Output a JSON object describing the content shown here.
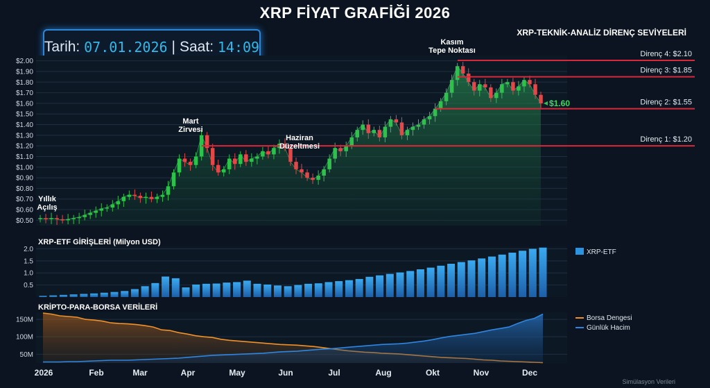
{
  "title": "XRP FİYAT GRAFİĞİ 2026",
  "datebox": {
    "date_label": "Tarih:",
    "date_value": "07.01.2026",
    "separator": "|",
    "time_label": "Saat:",
    "time_value": "14:09"
  },
  "resistance_title": "XRP-TEKNİK-ANALİZ DİRENÇ SEVİYELERİ",
  "source_note": "Simülasyon Verileri",
  "colors": {
    "up": "#2fc24a",
    "down": "#e24848",
    "resistance": "#d8283a",
    "etf": "#2b93e0",
    "balance": "#f0922a",
    "volume": "#2f86e0",
    "area": "#1f7a4a"
  },
  "chart_data": [
    {
      "type": "candlestick",
      "title": "XRP Fiyat",
      "ylim": [
        0.45,
        2.05
      ],
      "y_ticks": [
        "$0.50",
        "$0.60",
        "$0.70",
        "$0.80",
        "$0.90",
        "$1.00",
        "$1.10",
        "$1.20",
        "$1.30",
        "$1.40",
        "$1.50",
        "$1.60",
        "$1.70",
        "$1.80",
        "$1.90",
        "$2.00"
      ],
      "y_tick_values": [
        0.5,
        0.6,
        0.7,
        0.8,
        0.9,
        1.0,
        1.1,
        1.2,
        1.3,
        1.4,
        1.5,
        1.6,
        1.7,
        1.8,
        1.9,
        2.0
      ],
      "x_ticks": [
        "2026",
        "Feb",
        "Mar",
        "Apr",
        "May",
        "Jun",
        "Jul",
        "Aug",
        "Okt",
        "Nov",
        "Dec"
      ],
      "closes": [
        0.52,
        0.51,
        0.52,
        0.51,
        0.5,
        0.51,
        0.52,
        0.53,
        0.55,
        0.57,
        0.59,
        0.61,
        0.62,
        0.65,
        0.68,
        0.72,
        0.74,
        0.73,
        0.71,
        0.72,
        0.7,
        0.72,
        0.74,
        0.82,
        0.95,
        1.08,
        1.05,
        1.02,
        1.1,
        1.3,
        1.18,
        1.02,
        0.95,
        0.98,
        1.08,
        1.03,
        1.12,
        1.05,
        1.08,
        1.1,
        1.15,
        1.12,
        1.18,
        1.22,
        1.18,
        1.05,
        0.98,
        0.95,
        0.9,
        0.88,
        0.92,
        0.98,
        1.08,
        1.18,
        1.15,
        1.2,
        1.28,
        1.35,
        1.4,
        1.32,
        1.35,
        1.28,
        1.38,
        1.45,
        1.42,
        1.3,
        1.35,
        1.38,
        1.4,
        1.45,
        1.48,
        1.55,
        1.62,
        1.7,
        1.82,
        1.95,
        1.88,
        1.8,
        1.72,
        1.78,
        1.75,
        1.65,
        1.7,
        1.78,
        1.8,
        1.72,
        1.76,
        1.82,
        1.78,
        1.68,
        1.6
      ],
      "last_price_label": "$1.60",
      "resistance_levels": [
        {
          "label": "Direnç 1: $1.20",
          "value": 1.2
        },
        {
          "label": "Direnç 2: $1.55",
          "value": 1.55
        },
        {
          "label": "Direnç 3: $1.85",
          "value": 1.85
        },
        {
          "label": "Direnç 4: $2.10",
          "value": 2.1
        }
      ],
      "annotations": [
        {
          "text": [
            "Yıllık",
            "Açılış"
          ]
        },
        {
          "text": [
            "Mart",
            "Zirvesi"
          ]
        },
        {
          "text": [
            "Haziran",
            "Düzeltmesi"
          ]
        },
        {
          "text": [
            "Kasım",
            "Tepe Noktası"
          ]
        }
      ]
    },
    {
      "type": "bar",
      "title": "XRP-ETF GİRİŞLERİ (Milyon USD)",
      "legend": "XRP-ETF",
      "ylim": [
        0,
        2.1
      ],
      "y_ticks": [
        "0.5",
        "1.0",
        "1.5",
        "2.0"
      ],
      "y_tick_values": [
        0.5,
        1.0,
        1.5,
        2.0
      ],
      "values": [
        0.05,
        0.07,
        0.09,
        0.11,
        0.13,
        0.15,
        0.18,
        0.21,
        0.25,
        0.33,
        0.45,
        0.58,
        0.85,
        0.78,
        0.4,
        0.52,
        0.55,
        0.56,
        0.6,
        0.62,
        0.68,
        0.55,
        0.52,
        0.48,
        0.45,
        0.5,
        0.55,
        0.57,
        0.62,
        0.66,
        0.7,
        0.75,
        0.84,
        0.9,
        0.96,
        1.02,
        1.08,
        1.15,
        1.22,
        1.3,
        1.38,
        1.45,
        1.52,
        1.6,
        1.68,
        1.76,
        1.84,
        1.92,
        2.0,
        2.05
      ]
    },
    {
      "type": "area",
      "title": "KRİPTO-PARA-BORSA VERİLERİ",
      "ylim": [
        25,
        170
      ],
      "y_ticks": [
        "50M",
        "100M",
        "150M"
      ],
      "y_tick_values": [
        50,
        100,
        150
      ],
      "series": [
        {
          "name": "Borsa Dengesi",
          "values": [
            168,
            165,
            160,
            158,
            156,
            150,
            148,
            145,
            140,
            138,
            137,
            135,
            132,
            128,
            120,
            118,
            112,
            108,
            103,
            100,
            98,
            93,
            90,
            88,
            86,
            84,
            82,
            80,
            78,
            77,
            76,
            74,
            72,
            69,
            66,
            63,
            60,
            58,
            56,
            55,
            53,
            52,
            51,
            49,
            47,
            45,
            43,
            41,
            40,
            39,
            38,
            36,
            34,
            33,
            31,
            30,
            29,
            28,
            27,
            26
          ]
        },
        {
          "name": "Günlük Hacim",
          "values": [
            28,
            28,
            28,
            29,
            29,
            30,
            31,
            32,
            33,
            33,
            33,
            34,
            35,
            36,
            37,
            38,
            39,
            41,
            43,
            45,
            47,
            48,
            49,
            50,
            51,
            52,
            53,
            55,
            57,
            58,
            59,
            61,
            63,
            65,
            66,
            68,
            70,
            72,
            74,
            76,
            78,
            79,
            80,
            82,
            85,
            88,
            92,
            97,
            101,
            104,
            107,
            110,
            115,
            120,
            124,
            128,
            138,
            147,
            153,
            165
          ]
        }
      ],
      "x_ticks": [
        "2026",
        "Feb",
        "Mar",
        "Apr",
        "May",
        "Jun",
        "Jul",
        "Aug",
        "Okt",
        "Nov",
        "Dec"
      ]
    }
  ]
}
